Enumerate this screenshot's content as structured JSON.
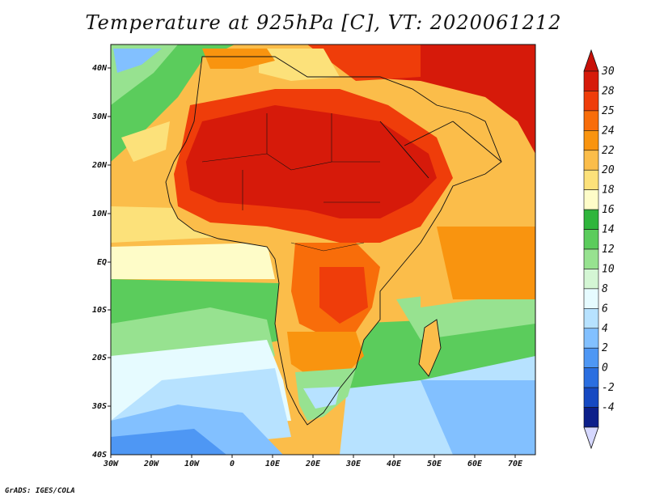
{
  "title": "Temperature at 925hPa [C], VT: 2020061212",
  "credit": "GrADS: IGES/COLA",
  "map": {
    "lon_range": [
      -30,
      75
    ],
    "lat_range": [
      -40,
      45
    ],
    "lon_ticks": [
      "30W",
      "20W",
      "10W",
      "0",
      "10E",
      "20E",
      "30E",
      "40E",
      "50E",
      "60E",
      "70E"
    ],
    "lat_ticks": [
      "40N",
      "30N",
      "20N",
      "10N",
      "EQ",
      "10S",
      "20S",
      "30S",
      "40S"
    ]
  },
  "colorbar": {
    "levels": [
      "30",
      "28",
      "25",
      "24",
      "22",
      "20",
      "18",
      "16",
      "14",
      "12",
      "10",
      "8",
      "6",
      "4",
      "2",
      "0",
      "-2",
      "-4"
    ],
    "colors": [
      "#d61a0a",
      "#ef3d0a",
      "#f86d0a",
      "#f9940f",
      "#fbbd4a",
      "#fce17a",
      "#fefcc8",
      "#2fb53c",
      "#5bcc5c",
      "#97e290",
      "#d4f6d4",
      "#e6fbff",
      "#b7e2ff",
      "#82c0ff",
      "#4e97f4",
      "#2a6ee0",
      "#1649c2",
      "#0c1f8a"
    ],
    "top_arrow_color": "#c81008",
    "bottom_arrow_color": "#d6d8ff"
  }
}
